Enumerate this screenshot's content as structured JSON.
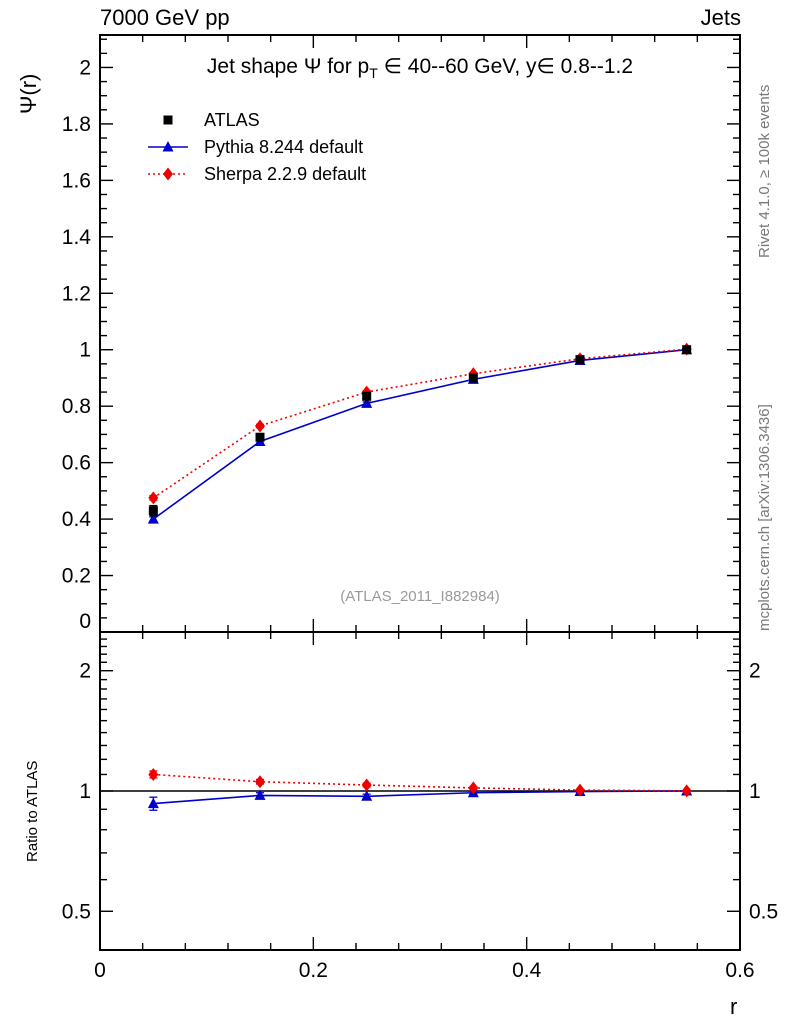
{
  "header": {
    "left": "7000 GeV pp",
    "right": "Jets"
  },
  "side_notes": {
    "rivet": "Rivet 4.1.0, ≥ 100k events",
    "mcplots": "mcplots.cern.ch [arXiv:1306.3436]"
  },
  "watermark": "(ATLAS_2011_I882984)",
  "legend": [
    {
      "label": "ATLAS",
      "marker": "square",
      "color": "#000000",
      "line": "none"
    },
    {
      "label": "Pythia 8.244 default",
      "marker": "triangle",
      "color": "#0000cc",
      "line": "solid"
    },
    {
      "label": "Sherpa 2.2.9 default",
      "marker": "diamond",
      "color": "#ee0000",
      "line": "dotted"
    }
  ],
  "chart_data": {
    "type": "line",
    "title": "Jet shape Ψ for p_T ∈ 40--60 GeV, y ∈ 0.8--1.2",
    "title_segments": [
      {
        "t": "Jet shape Ψ for p"
      },
      {
        "t": "T",
        "sub": true
      },
      {
        "t": " ∈ 40--60 GeV, y∈ 0.8--1.2"
      }
    ],
    "xlabel": "r",
    "ylabel": "Ψ(r)",
    "ratio_ylabel": "Ratio to ATLAS",
    "xlim": [
      0,
      0.6
    ],
    "ylim": [
      0,
      2.115
    ],
    "ratio_ylim": [
      0.4,
      2.5
    ],
    "ratio_yscale": "log",
    "grid": false,
    "legend_position": "top-left",
    "x_ticks": [
      0,
      0.2,
      0.4,
      0.6
    ],
    "y_ticks": [
      0,
      0.2,
      0.4,
      0.6,
      0.8,
      1,
      1.2,
      1.4,
      1.6,
      1.8,
      2
    ],
    "ratio_y_ticks": [
      0.5,
      1,
      2
    ],
    "x": [
      0.05,
      0.15,
      0.25,
      0.35,
      0.45,
      0.55
    ],
    "series": [
      {
        "name": "ATLAS",
        "color": "#000000",
        "marker": "square",
        "line": "none",
        "values": [
          0.43,
          0.69,
          0.835,
          0.9,
          0.965,
          1.0
        ],
        "errors": [
          0.018,
          0.012,
          0.009,
          0.006,
          0.004,
          0.003
        ]
      },
      {
        "name": "Pythia 8.244 default",
        "color": "#0000cc",
        "marker": "triangle",
        "line": "solid",
        "values": [
          0.4,
          0.675,
          0.81,
          0.895,
          0.962,
          1.0
        ],
        "errors": [
          0.008,
          0.006,
          0.005,
          0.004,
          0.003,
          0.002
        ]
      },
      {
        "name": "Sherpa 2.2.9 default",
        "color": "#ee0000",
        "marker": "diamond",
        "line": "dotted",
        "values": [
          0.475,
          0.73,
          0.85,
          0.915,
          0.968,
          1.002
        ],
        "errors": [
          0.008,
          0.006,
          0.005,
          0.004,
          0.003,
          0.002
        ]
      }
    ],
    "ratio_reference": 1,
    "ratio_series": [
      {
        "name": "Pythia 8.244 default",
        "color": "#0000cc",
        "marker": "triangle",
        "line": "solid",
        "values": [
          0.93,
          0.975,
          0.97,
          0.99,
          0.997,
          1.0
        ],
        "errors": [
          0.035,
          0.015,
          0.012,
          0.009,
          0.006,
          0.004
        ]
      },
      {
        "name": "Sherpa 2.2.9 default",
        "color": "#ee0000",
        "marker": "diamond",
        "line": "dotted",
        "values": [
          1.1,
          1.055,
          1.035,
          1.018,
          1.005,
          1.001
        ],
        "errors": [
          0.022,
          0.014,
          0.011,
          0.008,
          0.005,
          0.004
        ]
      }
    ]
  }
}
